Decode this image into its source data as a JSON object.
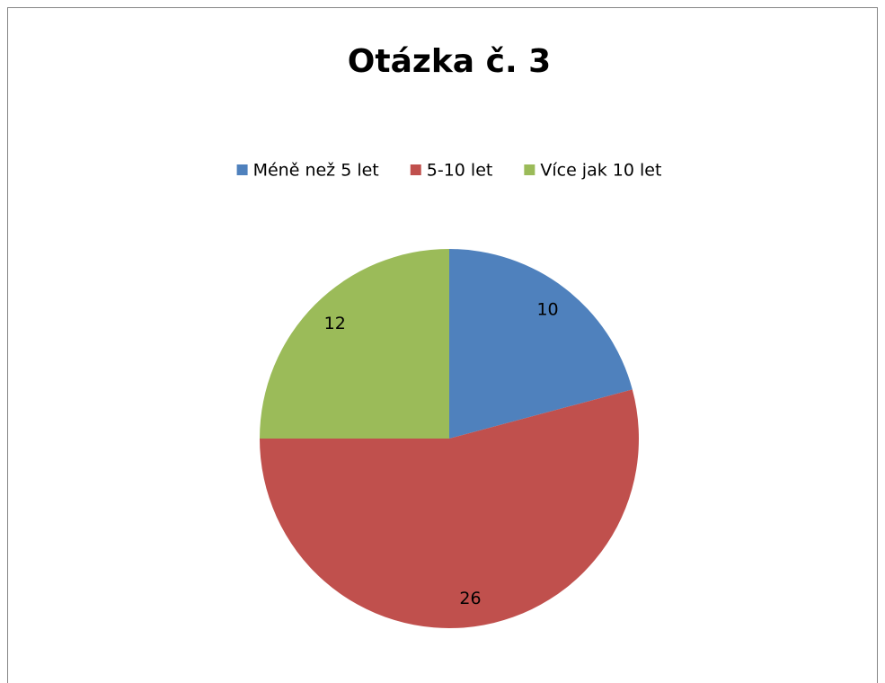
{
  "chart_data": {
    "type": "pie",
    "title": "Otázka č. 3",
    "categories": [
      "Méně než 5 let",
      "5-10 let",
      "Více jak 10 let"
    ],
    "values": [
      10,
      26,
      12
    ],
    "colors": [
      "#4f81bd",
      "#c0504d",
      "#9bbb59"
    ],
    "legend": "top"
  }
}
